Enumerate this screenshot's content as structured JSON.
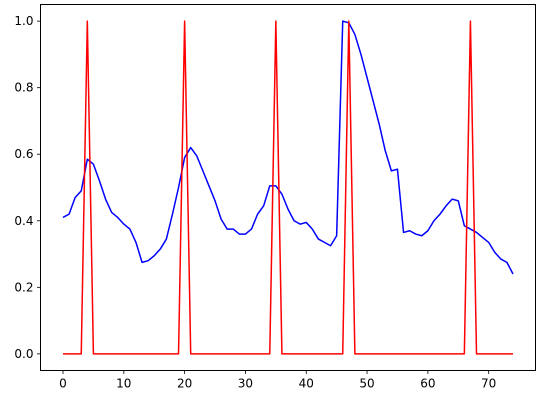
{
  "chart_data": {
    "type": "line",
    "x_ticks": [
      0,
      10,
      20,
      30,
      40,
      50,
      60,
      70
    ],
    "x_tick_labels": [
      "0",
      "10",
      "20",
      "30",
      "40",
      "50",
      "60",
      "70"
    ],
    "y_ticks": [
      0.0,
      0.2,
      0.4,
      0.6,
      0.8,
      1.0
    ],
    "y_tick_labels": [
      "0.0",
      "0.2",
      "0.4",
      "0.6",
      "0.8",
      "1.0"
    ],
    "xlim": [
      -3.7,
      77.7
    ],
    "ylim": [
      -0.05,
      1.05
    ],
    "grid": false,
    "legend": "none",
    "series": [
      {
        "color": "#0000ff",
        "x": [
          0,
          1,
          2,
          3,
          4,
          5,
          6,
          7,
          8,
          9,
          10,
          11,
          12,
          13,
          14,
          15,
          16,
          17,
          18,
          19,
          20,
          21,
          22,
          23,
          24,
          25,
          26,
          27,
          28,
          29,
          30,
          31,
          32,
          33,
          34,
          35,
          36,
          37,
          38,
          39,
          40,
          41,
          42,
          43,
          44,
          45,
          46,
          47,
          48,
          49,
          50,
          51,
          52,
          53,
          54,
          55,
          56,
          57,
          58,
          59,
          60,
          61,
          62,
          63,
          64,
          65,
          66,
          67,
          68,
          69,
          70,
          71,
          72,
          73,
          74
        ],
        "values": [
          0.41,
          0.42,
          0.47,
          0.49,
          0.585,
          0.57,
          0.52,
          0.465,
          0.425,
          0.41,
          0.39,
          0.375,
          0.335,
          0.275,
          0.28,
          0.295,
          0.315,
          0.345,
          0.42,
          0.5,
          0.59,
          0.62,
          0.595,
          0.55,
          0.505,
          0.46,
          0.405,
          0.375,
          0.375,
          0.36,
          0.36,
          0.375,
          0.42,
          0.445,
          0.505,
          0.505,
          0.48,
          0.435,
          0.4,
          0.39,
          0.395,
          0.375,
          0.345,
          0.335,
          0.325,
          0.355,
          1.0,
          0.995,
          0.96,
          0.9,
          0.83,
          0.76,
          0.69,
          0.61,
          0.55,
          0.555,
          0.365,
          0.37,
          0.36,
          0.355,
          0.37,
          0.4,
          0.42,
          0.445,
          0.465,
          0.46,
          0.385,
          0.375,
          0.365,
          0.35,
          0.335,
          0.305,
          0.285,
          0.275,
          0.24
        ]
      },
      {
        "color": "#ff0000",
        "x": [
          0,
          1,
          2,
          3,
          4,
          5,
          6,
          7,
          8,
          9,
          10,
          11,
          12,
          13,
          14,
          15,
          16,
          17,
          18,
          19,
          20,
          21,
          22,
          23,
          24,
          25,
          26,
          27,
          28,
          29,
          30,
          31,
          32,
          33,
          34,
          35,
          36,
          37,
          38,
          39,
          40,
          41,
          42,
          43,
          44,
          45,
          46,
          47,
          48,
          49,
          50,
          51,
          52,
          53,
          54,
          55,
          56,
          57,
          58,
          59,
          60,
          61,
          62,
          63,
          64,
          65,
          66,
          67,
          68,
          69,
          70,
          71,
          72,
          73,
          74
        ],
        "values": [
          0,
          0,
          0,
          0,
          1,
          0,
          0,
          0,
          0,
          0,
          0,
          0,
          0,
          0,
          0,
          0,
          0,
          0,
          0,
          0,
          1,
          0,
          0,
          0,
          0,
          0,
          0,
          0,
          0,
          0,
          0,
          0,
          0,
          0,
          0,
          1,
          0,
          0,
          0,
          0,
          0,
          0,
          0,
          0,
          0,
          0,
          0,
          1,
          0,
          0,
          0,
          0,
          0,
          0,
          0,
          0,
          0,
          0,
          0,
          0,
          0,
          0,
          0,
          0,
          0,
          0,
          0,
          1,
          0,
          0,
          0,
          0,
          0,
          0,
          0
        ]
      }
    ]
  }
}
